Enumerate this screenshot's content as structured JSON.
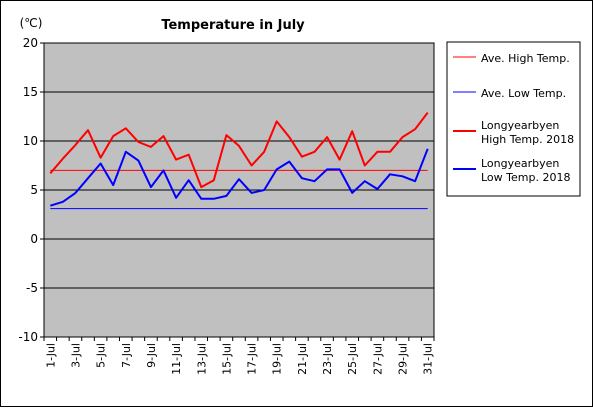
{
  "chart_data": {
    "type": "line",
    "title": "Temperature in July",
    "ylabel": "(℃)",
    "ylim": [
      -10,
      20
    ],
    "yticks": [
      "20",
      "15",
      "10",
      "5",
      "0",
      "-5",
      "-10"
    ],
    "ytick_values": [
      20,
      15,
      10,
      5,
      0,
      -5,
      -10
    ],
    "categories": [
      "1-Jul",
      "2-Jul",
      "3-Jul",
      "4-Jul",
      "5-Jul",
      "6-Jul",
      "7-Jul",
      "8-Jul",
      "9-Jul",
      "10-Jul",
      "11-Jul",
      "12-Jul",
      "13-Jul",
      "14-Jul",
      "15-Jul",
      "16-Jul",
      "17-Jul",
      "18-Jul",
      "19-Jul",
      "20-Jul",
      "21-Jul",
      "22-Jul",
      "23-Jul",
      "24-Jul",
      "25-Jul",
      "26-Jul",
      "27-Jul",
      "28-Jul",
      "29-Jul",
      "30-Jul",
      "31-Jul"
    ],
    "xtick_labels": [
      "1-Jul",
      "3-Jul",
      "5-Jul",
      "7-Jul",
      "9-Jul",
      "11-Jul",
      "13-Jul",
      "15-Jul",
      "17-Jul",
      "19-Jul",
      "21-Jul",
      "23-Jul",
      "25-Jul",
      "27-Jul",
      "29-Jul",
      "31-Jul"
    ],
    "legend_position": "right",
    "plot_background": "#c0c0c0",
    "series": [
      {
        "name": "Ave. High Temp.",
        "color": "#ff0000",
        "width": "thin",
        "values": [
          7.0,
          7.0,
          7.0,
          7.0,
          7.0,
          7.0,
          7.0,
          7.0,
          7.0,
          7.0,
          7.0,
          7.0,
          7.0,
          7.0,
          7.0,
          7.0,
          7.0,
          7.0,
          7.0,
          7.0,
          7.0,
          7.0,
          7.0,
          7.0,
          7.0,
          7.0,
          7.0,
          7.0,
          7.0,
          7.0,
          7.0
        ]
      },
      {
        "name": "Ave. Low Temp.",
        "color": "#0000ff",
        "width": "thin",
        "values": [
          3.1,
          3.1,
          3.1,
          3.1,
          3.1,
          3.1,
          3.1,
          3.1,
          3.1,
          3.1,
          3.1,
          3.1,
          3.1,
          3.1,
          3.1,
          3.1,
          3.1,
          3.1,
          3.1,
          3.1,
          3.1,
          3.1,
          3.1,
          3.1,
          3.1,
          3.1,
          3.1,
          3.1,
          3.1,
          3.1,
          3.1
        ]
      },
      {
        "name": "Longyearbyen High Temp. 2018",
        "legend_lines": [
          "Longyearbyen",
          "High Temp. 2018"
        ],
        "color": "#ff0000",
        "width": "thick",
        "values": [
          6.7,
          8.2,
          9.6,
          11.1,
          8.3,
          10.5,
          11.3,
          9.9,
          9.4,
          10.5,
          8.1,
          8.6,
          5.3,
          6.0,
          10.6,
          9.5,
          7.5,
          8.9,
          12.0,
          10.4,
          8.4,
          8.9,
          10.4,
          8.1,
          11.0,
          7.5,
          8.9,
          8.9,
          10.4,
          11.2,
          12.9
        ]
      },
      {
        "name": "Longyearbyen Low Temp. 2018",
        "legend_lines": [
          "Longyearbyen",
          "Low Temp. 2018"
        ],
        "color": "#0000ff",
        "width": "thick",
        "values": [
          3.4,
          3.8,
          4.7,
          6.2,
          7.7,
          5.5,
          8.9,
          8.0,
          5.3,
          7.0,
          4.2,
          6.0,
          4.1,
          4.1,
          4.4,
          6.1,
          4.7,
          5.0,
          7.1,
          7.9,
          6.2,
          5.9,
          7.1,
          7.1,
          4.7,
          5.9,
          5.1,
          6.6,
          6.4,
          5.9,
          9.2
        ]
      }
    ]
  }
}
